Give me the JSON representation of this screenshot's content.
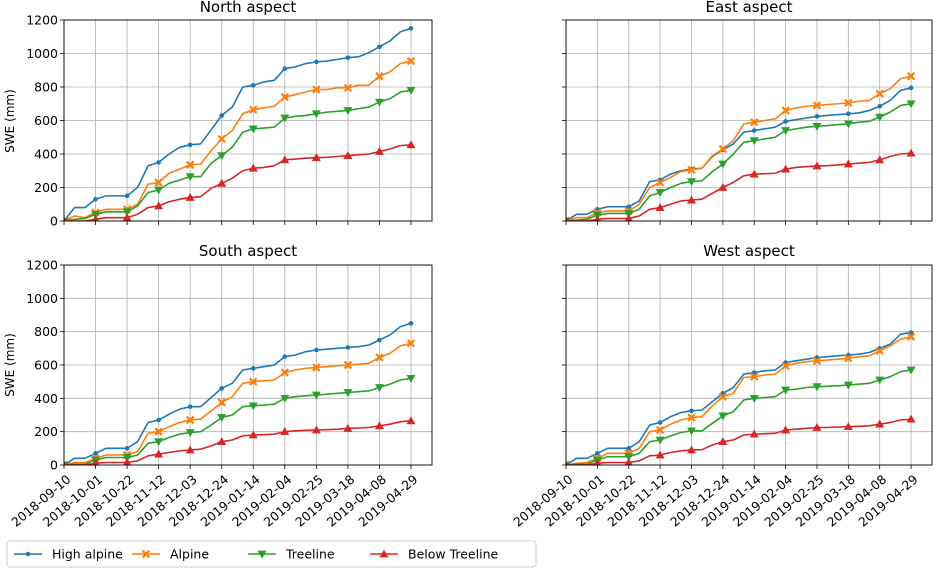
{
  "colors": {
    "high_alpine": "#1f77b4",
    "alpine": "#ff7f0e",
    "treeline": "#2ca02c",
    "below_treeline": "#d62728",
    "grid": "#b0b0b0"
  },
  "legend": [
    {
      "label": "High alpine",
      "marker": "dot",
      "series_key": "high_alpine"
    },
    {
      "label": "Alpine",
      "marker": "x",
      "series_key": "alpine"
    },
    {
      "label": "Treeline",
      "marker": "tri-down",
      "series_key": "treeline"
    },
    {
      "label": "Below Treeline",
      "marker": "tri-up",
      "series_key": "below_treeline"
    }
  ],
  "chart_data": [
    {
      "type": "line",
      "title": "North aspect",
      "ylabel": "SWE (mm)",
      "ylim": [
        0,
        1200
      ],
      "yticks": [
        0,
        200,
        400,
        600,
        800,
        1000,
        1200
      ],
      "show_xticklabels": false,
      "show_yticklabels": true,
      "grid": true,
      "x": [
        "2018-09-10",
        "2018-09-17",
        "2018-09-24",
        "2018-10-01",
        "2018-10-08",
        "2018-10-15",
        "2018-10-22",
        "2018-10-29",
        "2018-11-05",
        "2018-11-12",
        "2018-11-19",
        "2018-11-26",
        "2018-12-03",
        "2018-12-10",
        "2018-12-17",
        "2018-12-24",
        "2018-12-31",
        "2019-01-07",
        "2019-01-14",
        "2019-01-21",
        "2019-01-28",
        "2019-02-04",
        "2019-02-11",
        "2019-02-18",
        "2019-02-25",
        "2019-03-04",
        "2019-03-11",
        "2019-03-18",
        "2019-03-25",
        "2019-04-01",
        "2019-04-08",
        "2019-04-15",
        "2019-04-22",
        "2019-04-29"
      ],
      "series": [
        {
          "name": "High alpine",
          "key": "high_alpine",
          "values": [
            0,
            80,
            80,
            130,
            150,
            150,
            150,
            200,
            330,
            350,
            400,
            440,
            455,
            460,
            545,
            630,
            680,
            800,
            810,
            830,
            840,
            910,
            920,
            940,
            950,
            955,
            965,
            975,
            980,
            1005,
            1040,
            1075,
            1130,
            1150
          ]
        },
        {
          "name": "Alpine",
          "key": "alpine",
          "values": [
            0,
            30,
            20,
            50,
            70,
            70,
            70,
            100,
            220,
            230,
            285,
            310,
            335,
            340,
            420,
            490,
            540,
            640,
            665,
            675,
            685,
            740,
            755,
            770,
            785,
            785,
            795,
            795,
            810,
            810,
            865,
            890,
            940,
            955
          ]
        },
        {
          "name": "Treeline",
          "key": "treeline",
          "values": [
            0,
            10,
            15,
            40,
            55,
            55,
            55,
            90,
            170,
            185,
            225,
            245,
            265,
            265,
            345,
            390,
            440,
            530,
            550,
            555,
            560,
            615,
            625,
            630,
            640,
            650,
            655,
            660,
            670,
            680,
            710,
            730,
            770,
            780
          ]
        },
        {
          "name": "Below Treeline",
          "key": "below_treeline",
          "values": [
            0,
            0,
            0,
            10,
            20,
            20,
            20,
            40,
            80,
            90,
            115,
            130,
            140,
            145,
            195,
            225,
            255,
            300,
            315,
            320,
            330,
            365,
            370,
            375,
            378,
            380,
            385,
            390,
            395,
            400,
            415,
            430,
            450,
            455
          ]
        }
      ]
    },
    {
      "type": "line",
      "title": "East aspect",
      "ylabel": "",
      "ylim": [
        0,
        1200
      ],
      "yticks": [
        0,
        200,
        400,
        600,
        800,
        1000,
        1200
      ],
      "show_xticklabels": false,
      "show_yticklabels": false,
      "grid": true,
      "x": [
        "2018-09-10",
        "2018-09-17",
        "2018-09-24",
        "2018-10-01",
        "2018-10-08",
        "2018-10-15",
        "2018-10-22",
        "2018-10-29",
        "2018-11-05",
        "2018-11-12",
        "2018-11-19",
        "2018-11-26",
        "2018-12-03",
        "2018-12-10",
        "2018-12-17",
        "2018-12-24",
        "2018-12-31",
        "2019-01-07",
        "2019-01-14",
        "2019-01-21",
        "2019-01-28",
        "2019-02-04",
        "2019-02-11",
        "2019-02-18",
        "2019-02-25",
        "2019-03-04",
        "2019-03-11",
        "2019-03-18",
        "2019-03-25",
        "2019-04-01",
        "2019-04-08",
        "2019-04-15",
        "2019-04-22",
        "2019-04-29"
      ],
      "series": [
        {
          "name": "High alpine",
          "key": "high_alpine",
          "values": [
            0,
            40,
            40,
            70,
            85,
            85,
            85,
            120,
            235,
            245,
            280,
            300,
            310,
            315,
            385,
            425,
            460,
            530,
            540,
            550,
            560,
            595,
            605,
            615,
            625,
            630,
            635,
            640,
            645,
            660,
            685,
            720,
            780,
            795
          ]
        },
        {
          "name": "Alpine",
          "key": "alpine",
          "values": [
            0,
            20,
            20,
            50,
            60,
            60,
            60,
            100,
            200,
            230,
            260,
            295,
            305,
            315,
            390,
            430,
            480,
            580,
            590,
            600,
            610,
            660,
            675,
            685,
            690,
            695,
            700,
            705,
            715,
            720,
            760,
            790,
            850,
            865
          ]
        },
        {
          "name": "Treeline",
          "key": "treeline",
          "values": [
            0,
            5,
            10,
            35,
            45,
            45,
            45,
            70,
            150,
            170,
            200,
            225,
            235,
            240,
            295,
            340,
            400,
            470,
            480,
            490,
            500,
            540,
            550,
            560,
            565,
            570,
            575,
            580,
            590,
            595,
            620,
            650,
            690,
            700
          ]
        },
        {
          "name": "Below Treeline",
          "key": "below_treeline",
          "values": [
            0,
            0,
            0,
            10,
            15,
            15,
            15,
            30,
            70,
            80,
            100,
            120,
            125,
            130,
            165,
            200,
            230,
            270,
            280,
            282,
            285,
            310,
            320,
            325,
            328,
            330,
            335,
            340,
            345,
            350,
            365,
            385,
            400,
            405
          ]
        }
      ]
    },
    {
      "type": "line",
      "title": "South aspect",
      "ylabel": "SWE (mm)",
      "ylim": [
        0,
        1200
      ],
      "yticks": [
        0,
        200,
        400,
        600,
        800,
        1000,
        1200
      ],
      "show_xticklabels": true,
      "show_yticklabels": true,
      "grid": true,
      "xtick_labels": [
        "2018-09-10",
        "2018-10-01",
        "2018-10-22",
        "2018-11-12",
        "2018-12-03",
        "2018-12-24",
        "2019-01-14",
        "2019-02-04",
        "2019-02-25",
        "2019-03-18",
        "2019-04-08",
        "2019-04-29"
      ],
      "x": [
        "2018-09-10",
        "2018-09-17",
        "2018-09-24",
        "2018-10-01",
        "2018-10-08",
        "2018-10-15",
        "2018-10-22",
        "2018-10-29",
        "2018-11-05",
        "2018-11-12",
        "2018-11-19",
        "2018-11-26",
        "2018-12-03",
        "2018-12-10",
        "2018-12-17",
        "2018-12-24",
        "2018-12-31",
        "2019-01-07",
        "2019-01-14",
        "2019-01-21",
        "2019-01-28",
        "2019-02-04",
        "2019-02-11",
        "2019-02-18",
        "2019-02-25",
        "2019-03-04",
        "2019-03-11",
        "2019-03-18",
        "2019-03-25",
        "2019-04-01",
        "2019-04-08",
        "2019-04-15",
        "2019-04-22",
        "2019-04-29"
      ],
      "series": [
        {
          "name": "High alpine",
          "key": "high_alpine",
          "values": [
            0,
            40,
            40,
            70,
            100,
            100,
            100,
            140,
            255,
            270,
            305,
            335,
            350,
            350,
            405,
            460,
            490,
            570,
            580,
            590,
            600,
            650,
            660,
            680,
            690,
            695,
            700,
            705,
            710,
            720,
            750,
            780,
            830,
            850
          ]
        },
        {
          "name": "Alpine",
          "key": "alpine",
          "values": [
            0,
            15,
            15,
            40,
            60,
            60,
            60,
            80,
            190,
            200,
            230,
            255,
            270,
            275,
            325,
            375,
            410,
            490,
            500,
            505,
            510,
            555,
            570,
            580,
            585,
            590,
            595,
            600,
            605,
            610,
            645,
            670,
            715,
            730
          ]
        },
        {
          "name": "Treeline",
          "key": "treeline",
          "values": [
            0,
            5,
            5,
            30,
            45,
            45,
            45,
            60,
            130,
            140,
            165,
            185,
            195,
            200,
            240,
            285,
            300,
            350,
            355,
            360,
            365,
            400,
            410,
            415,
            420,
            425,
            430,
            435,
            440,
            445,
            465,
            485,
            510,
            520
          ]
        },
        {
          "name": "Below Treeline",
          "key": "below_treeline",
          "values": [
            0,
            0,
            0,
            10,
            15,
            15,
            15,
            25,
            55,
            65,
            75,
            85,
            90,
            95,
            115,
            140,
            150,
            175,
            180,
            182,
            185,
            200,
            205,
            208,
            210,
            212,
            215,
            220,
            222,
            225,
            235,
            245,
            260,
            265
          ]
        }
      ]
    },
    {
      "type": "line",
      "title": "West aspect",
      "ylabel": "",
      "ylim": [
        0,
        1200
      ],
      "yticks": [
        0,
        200,
        400,
        600,
        800,
        1000,
        1200
      ],
      "show_xticklabels": true,
      "show_yticklabels": false,
      "grid": true,
      "xtick_labels": [
        "2018-09-10",
        "2018-10-01",
        "2018-10-22",
        "2018-11-12",
        "2018-12-03",
        "2018-12-24",
        "2019-01-14",
        "2019-02-04",
        "2019-02-25",
        "2019-03-18",
        "2019-04-08",
        "2019-04-29"
      ],
      "x": [
        "2018-09-10",
        "2018-09-17",
        "2018-09-24",
        "2018-10-01",
        "2018-10-08",
        "2018-10-15",
        "2018-10-22",
        "2018-10-29",
        "2018-11-05",
        "2018-11-12",
        "2018-11-19",
        "2018-11-26",
        "2018-12-03",
        "2018-12-10",
        "2018-12-17",
        "2018-12-24",
        "2018-12-31",
        "2019-01-07",
        "2019-01-14",
        "2019-01-21",
        "2019-01-28",
        "2019-02-04",
        "2019-02-11",
        "2019-02-18",
        "2019-02-25",
        "2019-03-04",
        "2019-03-11",
        "2019-03-18",
        "2019-03-25",
        "2019-04-01",
        "2019-04-08",
        "2019-04-15",
        "2019-04-22",
        "2019-04-29"
      ],
      "series": [
        {
          "name": "High alpine",
          "key": "high_alpine",
          "values": [
            0,
            40,
            40,
            70,
            100,
            100,
            100,
            140,
            240,
            255,
            290,
            315,
            325,
            330,
            380,
            430,
            465,
            545,
            555,
            565,
            570,
            615,
            625,
            635,
            645,
            650,
            655,
            660,
            665,
            675,
            700,
            725,
            785,
            795
          ]
        },
        {
          "name": "Alpine",
          "key": "alpine",
          "values": [
            0,
            10,
            15,
            40,
            70,
            70,
            70,
            100,
            200,
            210,
            245,
            270,
            285,
            290,
            355,
            410,
            430,
            525,
            530,
            540,
            545,
            595,
            610,
            620,
            625,
            630,
            635,
            640,
            650,
            655,
            685,
            715,
            755,
            770
          ]
        },
        {
          "name": "Treeline",
          "key": "treeline",
          "values": [
            0,
            5,
            5,
            30,
            50,
            50,
            50,
            70,
            140,
            150,
            175,
            195,
            205,
            205,
            250,
            295,
            320,
            390,
            400,
            405,
            410,
            450,
            455,
            465,
            470,
            472,
            475,
            480,
            485,
            490,
            510,
            530,
            560,
            570
          ]
        },
        {
          "name": "Below Treeline",
          "key": "below_treeline",
          "values": [
            0,
            0,
            0,
            10,
            15,
            15,
            15,
            25,
            55,
            60,
            75,
            85,
            90,
            92,
            120,
            140,
            150,
            180,
            185,
            188,
            190,
            210,
            215,
            220,
            225,
            225,
            228,
            230,
            232,
            235,
            245,
            255,
            270,
            275
          ]
        }
      ]
    }
  ]
}
